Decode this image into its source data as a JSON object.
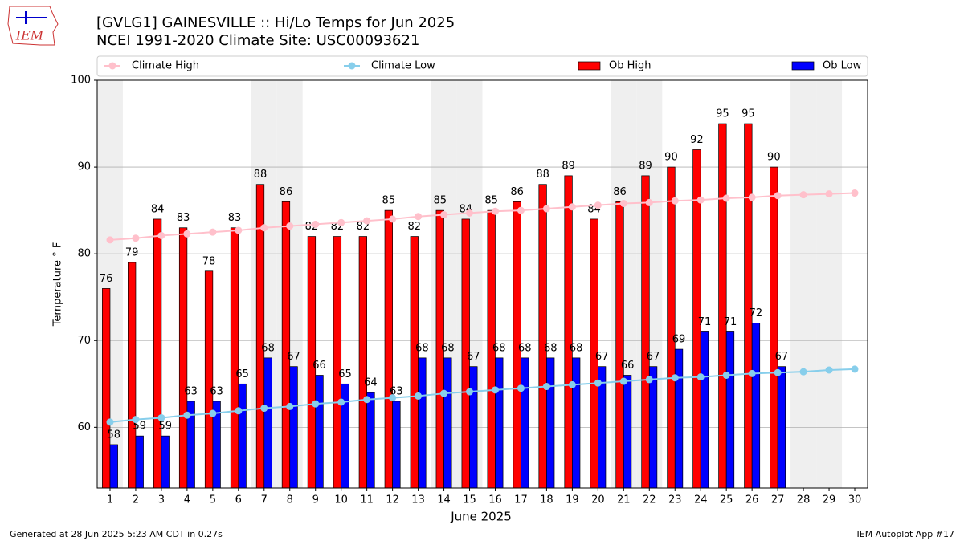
{
  "chart_data": {
    "type": "bar",
    "title": "[GVLG1] GAINESVILLE :: Hi/Lo Temps for Jun 2025",
    "subtitle": "NCEI 1991-2020 Climate Site: USC00093621",
    "logo_text": "IEM",
    "x_label": "June 2025",
    "y_label": "Temperature ° F",
    "footer_left": "Generated at 28 Jun 2025 5:23 AM CDT in 0.27s",
    "footer_right": "IEM Autoplot App #17",
    "x": [
      1,
      2,
      3,
      4,
      5,
      6,
      7,
      8,
      9,
      10,
      11,
      12,
      13,
      14,
      15,
      16,
      17,
      18,
      19,
      20,
      21,
      22,
      23,
      24,
      25,
      26,
      27,
      28,
      29,
      30
    ],
    "xticks": [
      1,
      2,
      3,
      4,
      5,
      6,
      7,
      8,
      9,
      10,
      11,
      12,
      13,
      14,
      15,
      16,
      17,
      18,
      19,
      20,
      21,
      22,
      23,
      24,
      25,
      26,
      27,
      28,
      29,
      30
    ],
    "xlim": [
      0.5,
      30.5
    ],
    "ylim": [
      53,
      100
    ],
    "yticks": [
      60,
      70,
      80,
      90,
      100
    ],
    "grid": true,
    "shaded_days": [
      1,
      7,
      8,
      14,
      15,
      21,
      22,
      28,
      29
    ],
    "legend_loc": "upper center",
    "series": [
      {
        "name": "Climate High",
        "type": "line",
        "color": "#ffc0cb",
        "values": [
          81.6,
          81.8,
          82.1,
          82.3,
          82.5,
          82.7,
          83.0,
          83.2,
          83.4,
          83.6,
          83.8,
          84.0,
          84.3,
          84.5,
          84.7,
          84.9,
          85.0,
          85.2,
          85.4,
          85.6,
          85.8,
          85.9,
          86.1,
          86.2,
          86.4,
          86.5,
          86.7,
          86.8,
          86.9,
          87.0
        ]
      },
      {
        "name": "Climate Low",
        "type": "line",
        "color": "#87ceeb",
        "values": [
          60.6,
          60.9,
          61.1,
          61.4,
          61.6,
          61.9,
          62.2,
          62.4,
          62.7,
          62.9,
          63.2,
          63.4,
          63.6,
          63.9,
          64.1,
          64.3,
          64.5,
          64.7,
          64.9,
          65.1,
          65.3,
          65.5,
          65.7,
          65.8,
          66.0,
          66.2,
          66.3,
          66.4,
          66.6,
          66.7
        ]
      },
      {
        "name": "Ob High",
        "type": "bar",
        "color": "#ff0000",
        "values": [
          76,
          79,
          84,
          83,
          78,
          83,
          88,
          86,
          82,
          82,
          82,
          85,
          82,
          85,
          84,
          85,
          86,
          88,
          89,
          84,
          86,
          89,
          90,
          92,
          95,
          95,
          90,
          null,
          null,
          null
        ]
      },
      {
        "name": "Ob Low",
        "type": "bar",
        "color": "#0000ff",
        "values": [
          58,
          59,
          59,
          63,
          63,
          65,
          68,
          67,
          66,
          65,
          64,
          63,
          68,
          68,
          67,
          68,
          68,
          68,
          68,
          67,
          66,
          67,
          69,
          71,
          71,
          72,
          67,
          null,
          null,
          null
        ]
      }
    ]
  }
}
